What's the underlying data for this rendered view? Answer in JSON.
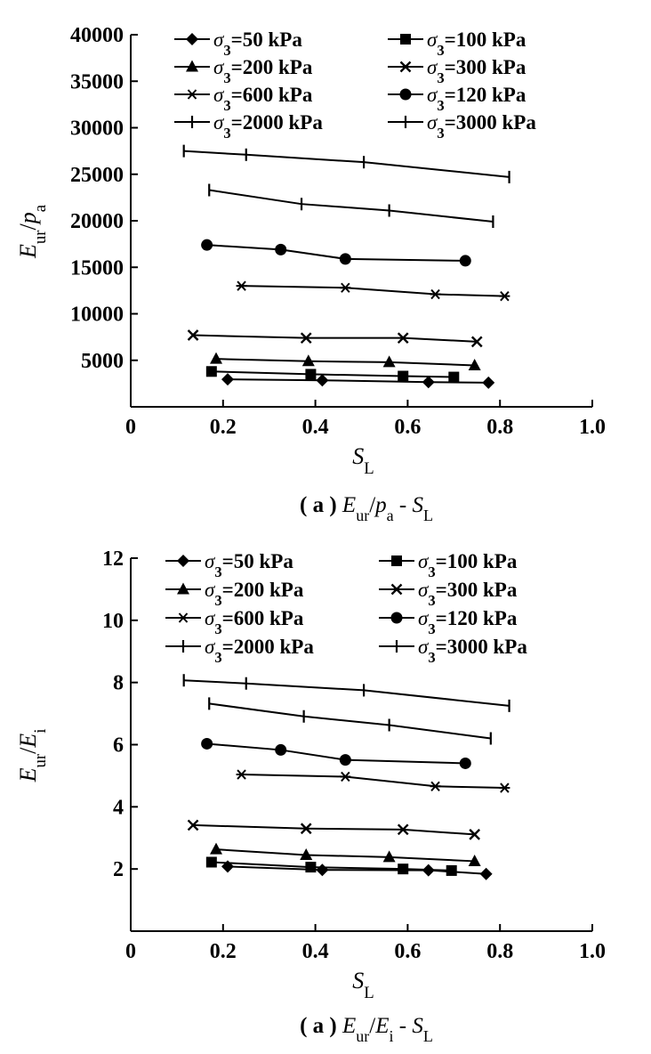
{
  "chart_data": [
    {
      "type": "line",
      "caption": {
        "prefix": "( a )",
        "var": "E",
        "varsub": "ur",
        "mid": "/",
        "var2": "p",
        "var2sub": "a",
        "dash": " - ",
        "var3": "S",
        "var3sub": "L"
      },
      "xlabel": {
        "main": "S",
        "sub": "L"
      },
      "ylabel": {
        "main": "E",
        "sub": "ur",
        "slash": "/",
        "main2": "p",
        "sub2": "a"
      },
      "xlim": [
        0,
        1.0
      ],
      "ylim": [
        0,
        40000
      ],
      "xticks": [
        "0",
        "0.2",
        "0.4",
        "0.6",
        "0.8",
        "1.0"
      ],
      "yticks": [
        "5000",
        "10000",
        "15000",
        "20000",
        "25000",
        "30000",
        "35000",
        "40000"
      ],
      "series": [
        {
          "name": "=50 kPa",
          "label_main": "σ",
          "label_sub": "3",
          "marker": "diamond",
          "x": [
            0.21,
            0.415,
            0.645,
            0.775
          ],
          "y": [
            2950,
            2850,
            2650,
            2600
          ]
        },
        {
          "name": "=100 kPa",
          "label_main": "σ",
          "label_sub": "3",
          "marker": "square",
          "x": [
            0.175,
            0.39,
            0.59,
            0.7
          ],
          "y": [
            3800,
            3500,
            3300,
            3200
          ]
        },
        {
          "name": "=200 kPa",
          "label_main": "σ",
          "label_sub": "3",
          "marker": "triangle",
          "x": [
            0.185,
            0.385,
            0.56,
            0.745
          ],
          "y": [
            5150,
            4900,
            4800,
            4450
          ]
        },
        {
          "name": "=300 kPa",
          "label_main": "σ",
          "label_sub": "3",
          "marker": "x",
          "x": [
            0.135,
            0.38,
            0.59,
            0.75
          ],
          "y": [
            7700,
            7400,
            7400,
            7000
          ]
        },
        {
          "name": "=600 kPa",
          "label_main": "σ",
          "label_sub": "3",
          "marker": "asterisk",
          "x": [
            0.24,
            0.465,
            0.66,
            0.81
          ],
          "y": [
            13000,
            12800,
            12100,
            11900
          ]
        },
        {
          "name": "=120 kPa",
          "label_main": "σ",
          "label_sub": "3",
          "marker": "circle",
          "x": [
            0.165,
            0.325,
            0.465,
            0.725
          ],
          "y": [
            17400,
            16900,
            15900,
            15700
          ]
        },
        {
          "name": "=2000 kPa",
          "label_main": "σ",
          "label_sub": "3",
          "marker": "plus",
          "x": [
            0.17,
            0.37,
            0.56,
            0.785
          ],
          "y": [
            23300,
            21800,
            21100,
            19900
          ]
        },
        {
          "name": "=3000 kPa",
          "label_main": "σ",
          "label_sub": "3",
          "marker": "vbar",
          "x": [
            0.115,
            0.25,
            0.505,
            0.82
          ],
          "y": [
            27500,
            27100,
            26300,
            24700
          ]
        }
      ]
    },
    {
      "type": "line",
      "caption": {
        "prefix": "( a )",
        "var": "E",
        "varsub": "ur",
        "mid": "/",
        "var2": "E",
        "var2sub": "i",
        "dash": " - ",
        "var3": "S",
        "var3sub": "L"
      },
      "xlabel": {
        "main": "S",
        "sub": "L"
      },
      "ylabel": {
        "main": "E",
        "sub": "ur",
        "slash": "/",
        "main2": "E",
        "sub2": "i"
      },
      "xlim": [
        0,
        1.0
      ],
      "ylim": [
        0,
        12
      ],
      "xticks": [
        "0",
        "0.2",
        "0.4",
        "0.6",
        "0.8",
        "1.0"
      ],
      "yticks": [
        "2",
        "4",
        "6",
        "8",
        "10",
        "12"
      ],
      "series": [
        {
          "name": "=50 kPa",
          "label_main": "σ",
          "label_sub": "3",
          "marker": "diamond",
          "x": [
            0.21,
            0.415,
            0.645,
            0.77
          ],
          "y": [
            2.08,
            1.97,
            1.96,
            1.84
          ]
        },
        {
          "name": "=100 kPa",
          "label_main": "σ",
          "label_sub": "3",
          "marker": "square",
          "x": [
            0.175,
            0.39,
            0.59,
            0.695
          ],
          "y": [
            2.22,
            2.06,
            2.0,
            1.95
          ]
        },
        {
          "name": "=200 kPa",
          "label_main": "σ",
          "label_sub": "3",
          "marker": "triangle",
          "x": [
            0.185,
            0.38,
            0.56,
            0.745
          ],
          "y": [
            2.63,
            2.45,
            2.38,
            2.25
          ]
        },
        {
          "name": "=300 kPa",
          "label_main": "σ",
          "label_sub": "3",
          "marker": "x",
          "x": [
            0.135,
            0.38,
            0.59,
            0.745
          ],
          "y": [
            3.41,
            3.3,
            3.27,
            3.11
          ]
        },
        {
          "name": "=600 kPa",
          "label_main": "σ",
          "label_sub": "3",
          "marker": "asterisk",
          "x": [
            0.24,
            0.465,
            0.66,
            0.81
          ],
          "y": [
            5.04,
            4.97,
            4.66,
            4.61
          ]
        },
        {
          "name": "=120 kPa",
          "label_main": "σ",
          "label_sub": "3",
          "marker": "circle",
          "x": [
            0.165,
            0.325,
            0.465,
            0.725
          ],
          "y": [
            6.03,
            5.83,
            5.51,
            5.4
          ]
        },
        {
          "name": "=2000 kPa",
          "label_main": "σ",
          "label_sub": "3",
          "marker": "plus",
          "x": [
            0.17,
            0.375,
            0.56,
            0.78
          ],
          "y": [
            7.32,
            6.91,
            6.63,
            6.2
          ]
        },
        {
          "name": "=3000 kPa",
          "label_main": "σ",
          "label_sub": "3",
          "marker": "vbar",
          "x": [
            0.115,
            0.25,
            0.505,
            0.82
          ],
          "y": [
            8.07,
            7.97,
            7.75,
            7.25
          ]
        }
      ]
    }
  ]
}
